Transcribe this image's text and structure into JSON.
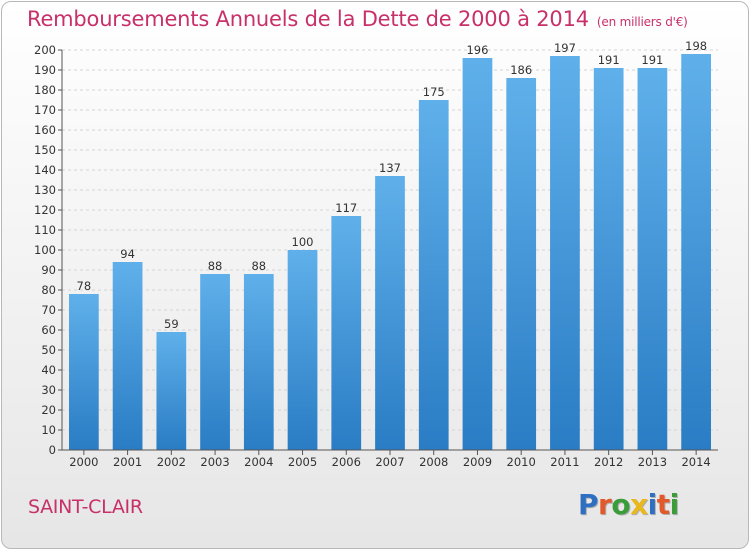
{
  "chart_data": {
    "type": "bar",
    "title": "Remboursements Annuels de la Dette de 2000 à 2014",
    "subtitle": "(en milliers d'€)",
    "categories": [
      "2000",
      "2001",
      "2002",
      "2003",
      "2004",
      "2005",
      "2006",
      "2007",
      "2008",
      "2009",
      "2010",
      "2011",
      "2012",
      "2013",
      "2014"
    ],
    "values": [
      78,
      94,
      59,
      88,
      88,
      100,
      117,
      137,
      175,
      196,
      186,
      197,
      191,
      191,
      198
    ],
    "ylim": [
      0,
      200
    ],
    "yticks": [
      0,
      10,
      20,
      30,
      40,
      50,
      60,
      70,
      80,
      90,
      100,
      110,
      120,
      130,
      140,
      150,
      160,
      170,
      180,
      190,
      200
    ],
    "grid": true,
    "xlabel": "",
    "ylabel": "",
    "colors": {
      "bar_top": "#5fb0ea",
      "bar_bottom": "#2a7cc4",
      "title": "#c8306a"
    }
  },
  "footer": {
    "commune": "SAINT-CLAIR"
  },
  "logo": {
    "text": "Proxiti",
    "letters": [
      {
        "ch": "P",
        "color": "#2e6fc2"
      },
      {
        "ch": "r",
        "color": "#e25a2b"
      },
      {
        "ch": "o",
        "color": "#3a9d3a"
      },
      {
        "ch": "x",
        "color": "#e8b81c"
      },
      {
        "ch": "i",
        "color": "#2e6fc2"
      },
      {
        "ch": "t",
        "color": "#e25a2b"
      },
      {
        "ch": "i",
        "color": "#3a9d3a"
      }
    ]
  }
}
